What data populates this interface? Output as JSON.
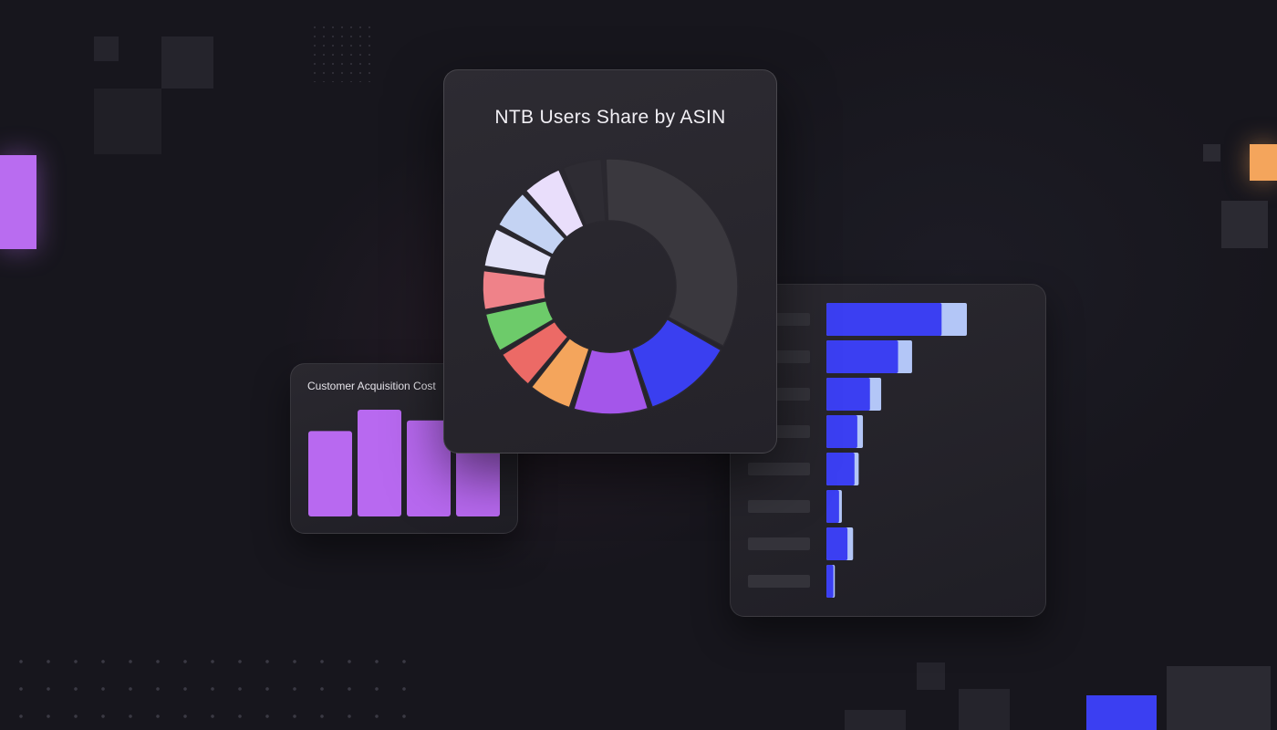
{
  "chart_data": [
    {
      "type": "pie",
      "title": "NTB Users Share by ASIN",
      "values": [
        12,
        10,
        6,
        5.5,
        5.5,
        5.5,
        5.5,
        5.5,
        5.5,
        5.5,
        34
      ],
      "colors": [
        "#3a3ff0",
        "#a456ea",
        "#f4a55c",
        "#ec6a66",
        "#6dcb6a",
        "#ef8289",
        "#e2e2f8",
        "#c4d3f3",
        "#e9defb",
        "#2e2c33",
        "#3a383e"
      ]
    },
    {
      "type": "bar",
      "title": "Customer Acquisition Cost",
      "values": [
        0.8,
        1.0,
        0.9,
        0.8
      ],
      "ylim": [
        0,
        1
      ],
      "color": "#b869f0"
    },
    {
      "type": "bar",
      "orientation": "horizontal",
      "series": [
        {
          "values": [
            0.82,
            0.51,
            0.31,
            0.22,
            0.2,
            0.09,
            0.15,
            0.05
          ],
          "color": "#3b3ff2"
        },
        {
          "values": [
            1.0,
            0.61,
            0.39,
            0.26,
            0.23,
            0.11,
            0.19,
            0.06
          ],
          "color": "#b3c6f7"
        }
      ],
      "xlim": [
        0,
        1
      ]
    }
  ],
  "decor": {
    "violet": "#b96cf0",
    "orange": "#f4a55c",
    "blue": "#3b3ff2"
  }
}
